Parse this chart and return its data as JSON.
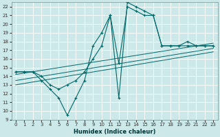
{
  "xlabel": "Humidex (Indice chaleur)",
  "xlim": [
    -0.5,
    23.5
  ],
  "ylim": [
    9,
    22.5
  ],
  "xticks": [
    0,
    1,
    2,
    3,
    4,
    5,
    6,
    7,
    8,
    9,
    10,
    11,
    12,
    13,
    14,
    15,
    16,
    17,
    18,
    19,
    20,
    21,
    22,
    23
  ],
  "yticks": [
    9,
    10,
    11,
    12,
    13,
    14,
    15,
    16,
    17,
    18,
    19,
    20,
    21,
    22
  ],
  "bg_color": "#cce8e8",
  "grid_color": "#aad4d4",
  "line_color": "#006666",
  "series1_x": [
    0,
    1,
    2,
    3,
    4,
    5,
    6,
    7,
    8,
    9,
    10,
    11,
    12,
    13,
    14,
    15,
    16,
    17,
    18,
    19,
    20,
    21,
    22,
    23
  ],
  "series1_y": [
    14.5,
    14.5,
    14.5,
    13.5,
    12.5,
    11.5,
    9.5,
    11.5,
    13.5,
    17.5,
    19.0,
    21.0,
    11.5,
    22.5,
    22.0,
    21.5,
    21.0,
    17.5,
    17.5,
    17.5,
    18.0,
    17.5,
    17.5,
    17.5
  ],
  "series2_x": [
    0,
    1,
    2,
    3,
    4,
    5,
    6,
    7,
    8,
    9,
    10,
    11,
    12,
    13,
    14,
    15,
    16,
    17,
    18,
    19,
    20,
    21,
    22,
    23
  ],
  "series2_y": [
    14.5,
    14.5,
    14.5,
    14.0,
    13.0,
    12.5,
    13.0,
    13.5,
    14.5,
    16.0,
    17.5,
    21.0,
    15.5,
    22.0,
    21.5,
    21.0,
    21.0,
    17.5,
    17.5,
    17.5,
    17.5,
    17.5,
    17.5,
    17.5
  ],
  "trend1_x": [
    0,
    23
  ],
  "trend1_y": [
    13.5,
    17.2
  ],
  "trend2_x": [
    0,
    23
  ],
  "trend2_y": [
    14.2,
    17.8
  ],
  "trend3_x": [
    0,
    23
  ],
  "trend3_y": [
    13.0,
    16.8
  ]
}
